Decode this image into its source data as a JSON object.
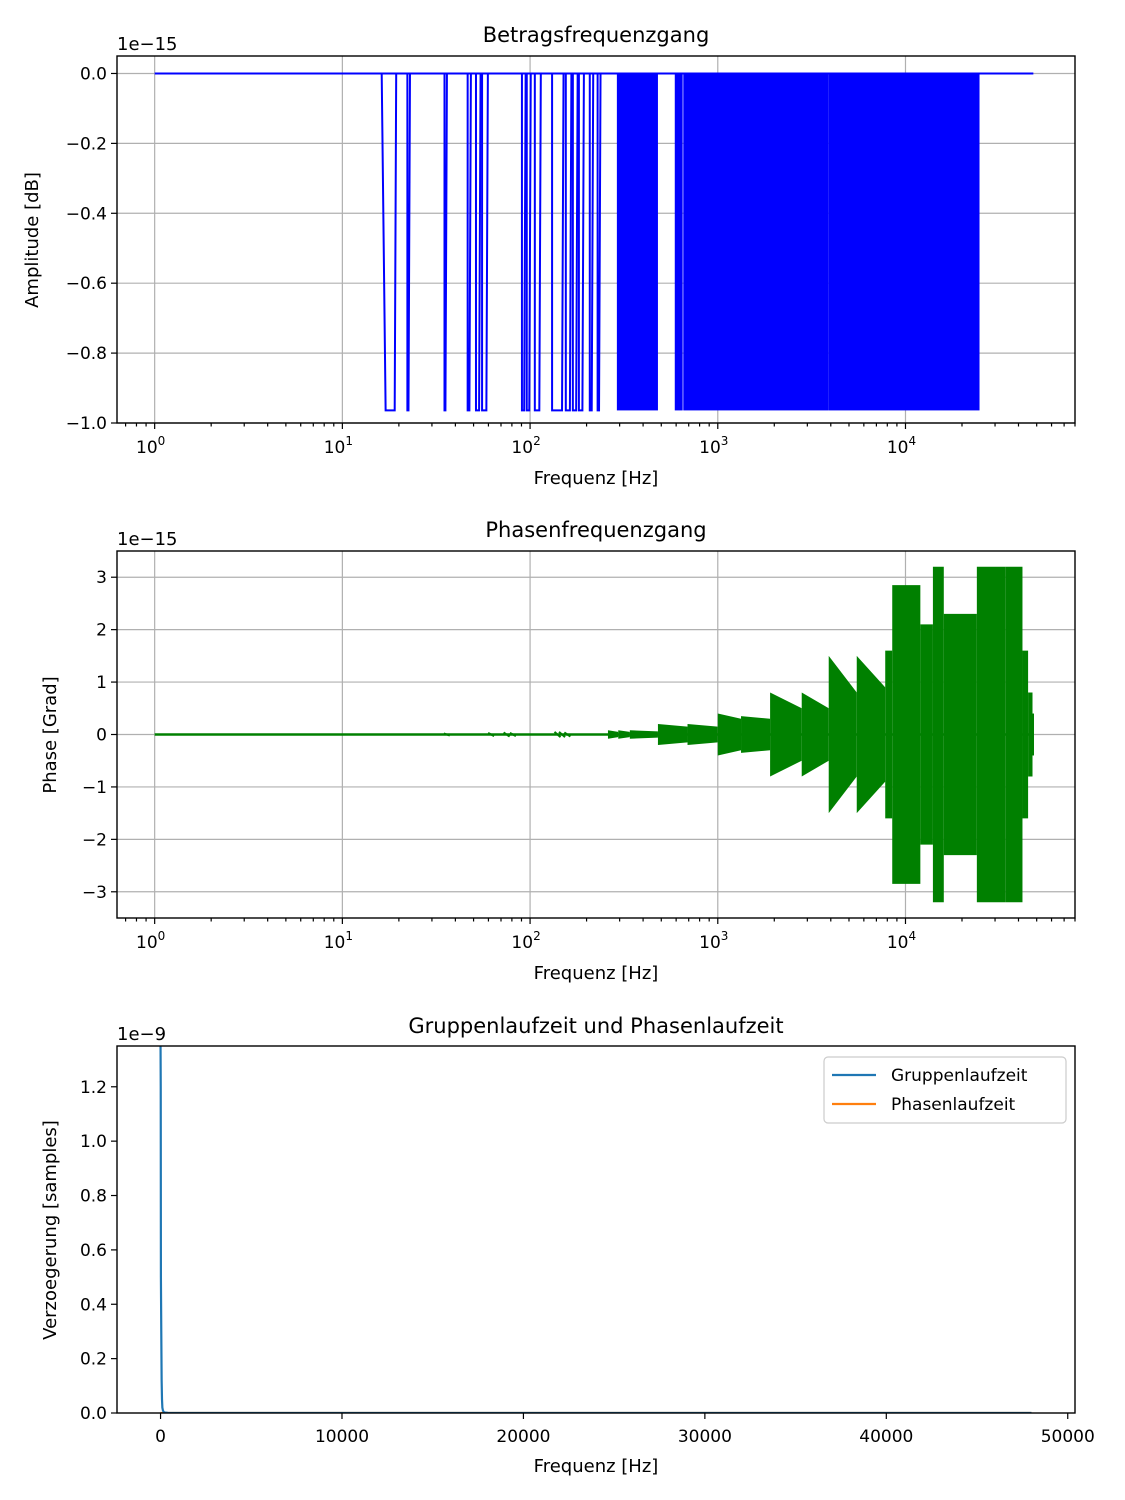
{
  "chart_data": [
    {
      "type": "line",
      "title": "Betragsfrequenzgang",
      "xlabel": "Frequenz [Hz]",
      "ylabel": "Amplitude [dB]",
      "offset_text": "1e−15",
      "xscale": "log",
      "xlim": [
        0.63,
        80000
      ],
      "ylim": [
        -1.0,
        0.05
      ],
      "yticks": [
        0.0,
        -0.2,
        -0.4,
        -0.6,
        -0.8,
        -1.0
      ],
      "ytick_labels": [
        "0.0",
        "−0.2",
        "−0.4",
        "−0.6",
        "−0.8",
        "−1.0"
      ],
      "xticks": [
        1,
        10,
        100,
        1000,
        10000
      ],
      "xtick_labels": [
        {
          "base": "10",
          "exp": "0"
        },
        {
          "base": "10",
          "exp": "1"
        },
        {
          "base": "10",
          "exp": "2"
        },
        {
          "base": "10",
          "exp": "3"
        },
        {
          "base": "10",
          "exp": "4"
        }
      ],
      "grid": true,
      "color": "#0000ff",
      "series": [
        {
          "baseline": 0.0,
          "dip_level": -0.964,
          "x_range": [
            1,
            48000
          ],
          "dips": [
            [
              16.2,
              17.0,
              19.0
            ],
            [
              22.2,
              22.2,
              22.5
            ],
            [
              35,
              35,
              35.4
            ],
            [
              46.5,
              46.5,
              47.5
            ],
            [
              51.5,
              51.5,
              53.5
            ],
            [
              55.5,
              55.5,
              58.5
            ],
            [
              90.5,
              90.5,
              93
            ],
            [
              96,
              96,
              99
            ],
            [
              106,
              106,
              112
            ],
            [
              131,
              131,
              148
            ],
            [
              155,
              155,
              163
            ],
            [
              169,
              169,
              176
            ],
            [
              182,
              182,
              190
            ],
            [
              208,
              208,
              213
            ],
            [
              229,
              229,
              233
            ]
          ],
          "dense_bands": [
            [
              290,
              480
            ],
            [
              590,
              650
            ],
            [
              655,
              3900
            ],
            [
              3900,
              24800
            ]
          ]
        }
      ]
    },
    {
      "type": "line",
      "title": "Phasenfrequenzgang",
      "xlabel": "Frequenz [Hz]",
      "ylabel": "Phase [Grad]",
      "offset_text": "1e−15",
      "xscale": "log",
      "xlim": [
        0.63,
        80000
      ],
      "ylim": [
        -3.5,
        3.5
      ],
      "yticks": [
        3,
        2,
        1,
        0,
        -1,
        -2,
        -3
      ],
      "ytick_labels": [
        "3",
        "2",
        "1",
        "0",
        "−1",
        "−2",
        "−3"
      ],
      "xticks": [
        1,
        10,
        100,
        1000,
        10000
      ],
      "xtick_labels": [
        {
          "base": "10",
          "exp": "0"
        },
        {
          "base": "10",
          "exp": "1"
        },
        {
          "base": "10",
          "exp": "2"
        },
        {
          "base": "10",
          "exp": "3"
        },
        {
          "base": "10",
          "exp": "4"
        }
      ],
      "grid": true,
      "color": "#008000",
      "series": [
        {
          "baseline": 0.0,
          "x_range": [
            1,
            48000
          ],
          "ripples": [
            [
              36,
              0.02
            ],
            [
              62,
              0.03
            ],
            [
              75,
              0.04
            ],
            [
              81,
              0.03
            ],
            [
              140,
              0.05
            ],
            [
              148,
              0.05
            ],
            [
              158,
              0.04
            ]
          ],
          "bursts": [
            [
              260,
              0.08,
              0.05
            ],
            [
              295,
              0.08,
              0.05
            ],
            [
              340,
              0.08,
              0.06
            ],
            [
              480,
              0.2,
              0.15
            ],
            [
              690,
              0.2,
              0.15
            ],
            [
              1000,
              0.4,
              0.3
            ],
            [
              1330,
              0.35,
              0.3
            ],
            [
              1900,
              0.8,
              0.5
            ],
            [
              2800,
              0.8,
              0.5
            ],
            [
              3900,
              1.5,
              0.8
            ],
            [
              5500,
              1.5,
              0.9
            ],
            [
              7800,
              1.6,
              1.6
            ],
            [
              8500,
              2.85,
              2.85
            ],
            [
              12000,
              2.1,
              2.1
            ],
            [
              14000,
              3.2,
              3.2
            ],
            [
              16000,
              2.3,
              2.3
            ],
            [
              24000,
              3.2,
              3.2
            ],
            [
              34000,
              3.2,
              3.2
            ],
            [
              42000,
              1.6,
              1.6
            ],
            [
              45000,
              0.8,
              0.8
            ],
            [
              47500,
              0.4,
              0.4
            ]
          ]
        }
      ]
    },
    {
      "type": "line",
      "title": "Gruppenlaufzeit und Phasenlaufzeit",
      "xlabel": "Frequenz [Hz]",
      "ylabel": "Verzoegerung [samples]",
      "offset_text": "1e−9",
      "xscale": "linear",
      "xlim": [
        -2400,
        50400
      ],
      "ylim": [
        0.0,
        1.35
      ],
      "yticks": [
        0.0,
        0.2,
        0.4,
        0.6,
        0.8,
        1.0,
        1.2
      ],
      "ytick_labels": [
        "0.0",
        "0.2",
        "0.4",
        "0.6",
        "0.8",
        "1.0",
        "1.2"
      ],
      "xticks": [
        0,
        10000,
        20000,
        30000,
        40000,
        50000
      ],
      "xtick_labels": [
        "0",
        "10000",
        "20000",
        "30000",
        "40000",
        "50000"
      ],
      "grid": false,
      "legend": {
        "position": "upper right"
      },
      "series": [
        {
          "name": "Gruppenlaufzeit",
          "color": "#1f77b4",
          "x": [
            0,
            10,
            20,
            40,
            60,
            80,
            100,
            130,
            160,
            220,
            400,
            1000,
            48000
          ],
          "y": [
            1.35,
            1.2,
            0.5,
            0.3,
            0.12,
            0.05,
            0.02,
            0.01,
            0.005,
            0.002,
            0.0005,
            0.0001,
            0.0
          ]
        },
        {
          "name": "Phasenlaufzeit",
          "color": "#ff7f0e",
          "x": [
            0,
            48000
          ],
          "y": [
            0.0,
            0.0
          ]
        }
      ]
    }
  ]
}
